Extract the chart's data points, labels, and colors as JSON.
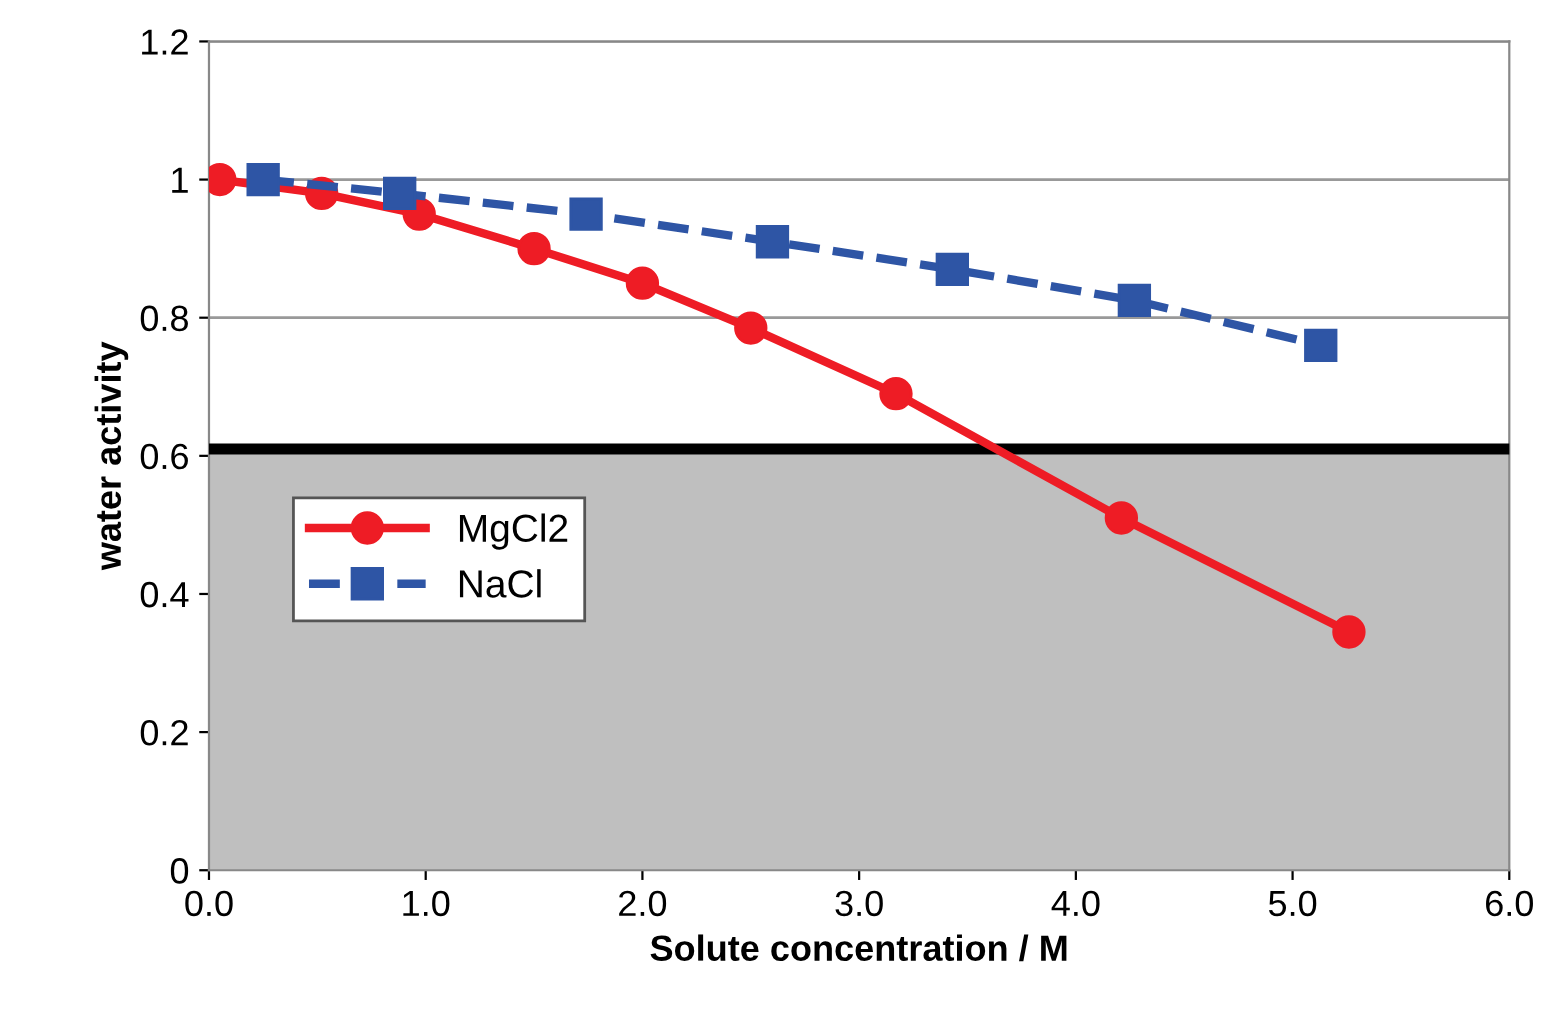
{
  "chart_data": {
    "type": "line",
    "xlabel": "Solute concentration / M",
    "ylabel": "water activity",
    "series": [
      {
        "name": "MgCl2",
        "color": "#ee1c25",
        "marker": "circle",
        "line_style": "solid",
        "x": [
          0.05,
          0.52,
          0.97,
          1.5,
          2.0,
          2.5,
          3.17,
          4.21,
          5.26
        ],
        "values": [
          1.0,
          0.98,
          0.95,
          0.9,
          0.85,
          0.785,
          0.69,
          0.51,
          0.345
        ]
      },
      {
        "name": "NaCl",
        "color": "#2e55a5",
        "marker": "square",
        "line_style": "dashed",
        "x": [
          0.25,
          0.88,
          1.74,
          2.6,
          3.43,
          4.27,
          5.13
        ],
        "values": [
          1.0,
          0.98,
          0.95,
          0.91,
          0.87,
          0.825,
          0.76
        ]
      }
    ],
    "xlim": [
      0,
      6
    ],
    "ylim": [
      0,
      1.2
    ],
    "xticks": [
      {
        "value": 0,
        "label": "0.0"
      },
      {
        "value": 1,
        "label": "1.0"
      },
      {
        "value": 2,
        "label": "2.0"
      },
      {
        "value": 3,
        "label": "3.0"
      },
      {
        "value": 4,
        "label": "4.0"
      },
      {
        "value": 5,
        "label": "5.0"
      },
      {
        "value": 6,
        "label": "6.0"
      }
    ],
    "yticks": [
      0,
      0.2,
      0.4,
      0.6,
      0.8,
      1,
      1.2
    ],
    "bands": [
      {
        "axis": "y",
        "from": 0,
        "to": 0.6,
        "color": "#bfbfbf"
      }
    ],
    "ref_lines": [
      {
        "axis": "y",
        "value": 0.61,
        "color": "#000000"
      }
    ],
    "grid": "y",
    "legend": "center left"
  }
}
